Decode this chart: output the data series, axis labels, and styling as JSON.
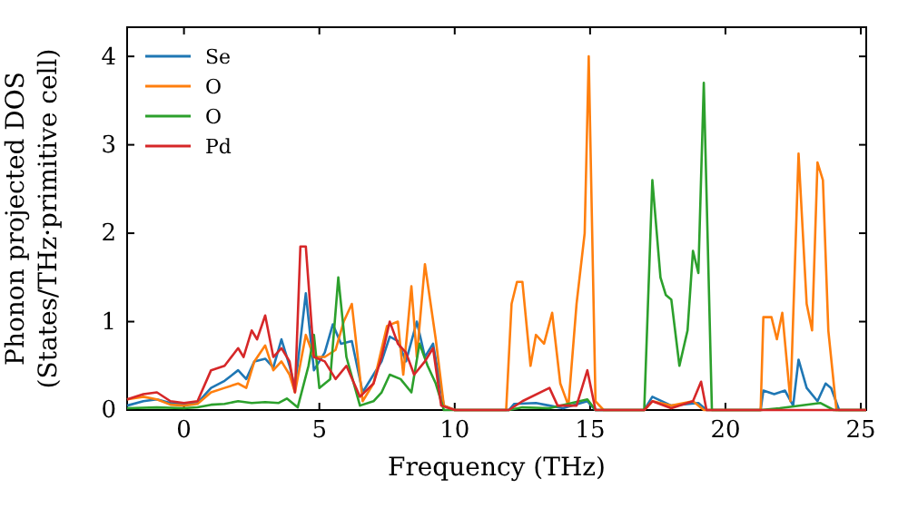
{
  "chart_data": {
    "type": "line",
    "xlabel": "Frequency (THz)",
    "ylabel": "Phonon projected DOS\n(States/THz·primitive cell)",
    "xlim": [
      -2.1,
      25.2
    ],
    "ylim": [
      0,
      4.33
    ],
    "xticks": [
      0,
      5,
      10,
      15,
      20,
      25
    ],
    "yticks": [
      0,
      1,
      2,
      3,
      4
    ],
    "legend": "top left",
    "grid": false,
    "series": [
      {
        "name": "Se",
        "color": "#1f77b4",
        "x": [
          -2.1,
          -1.5,
          -1,
          -0.5,
          0,
          0.5,
          1,
          1.5,
          2,
          2.3,
          2.6,
          3,
          3.3,
          3.6,
          3.9,
          4.1,
          4.5,
          4.8,
          5.2,
          5.5,
          5.8,
          6.2,
          6.6,
          7,
          7.3,
          7.6,
          7.9,
          8.2,
          8.6,
          8.9,
          9.2,
          9.6,
          10,
          12,
          12.2,
          13,
          13.5,
          14,
          14.9,
          15.2,
          17,
          17.3,
          18,
          19,
          19.3,
          21.3,
          21.4,
          21.8,
          22.2,
          22.5,
          22.7,
          23,
          23.4,
          23.7,
          23.9,
          24.2,
          25.2
        ],
        "values": [
          0.05,
          0.1,
          0.12,
          0.08,
          0.06,
          0.08,
          0.25,
          0.33,
          0.45,
          0.35,
          0.55,
          0.58,
          0.48,
          0.8,
          0.5,
          0.25,
          1.32,
          0.45,
          0.65,
          0.97,
          0.75,
          0.78,
          0.2,
          0.4,
          0.55,
          0.83,
          0.78,
          0.55,
          1.0,
          0.6,
          0.75,
          0.05,
          0,
          0,
          0.07,
          0.08,
          0.05,
          0.02,
          0.1,
          0,
          0,
          0.15,
          0.05,
          0.08,
          0,
          0,
          0.22,
          0.18,
          0.22,
          0.05,
          0.57,
          0.25,
          0.1,
          0.3,
          0.25,
          0,
          0
        ]
      },
      {
        "name": "O",
        "color": "#ff7f0e",
        "x": [
          -2.1,
          -1.5,
          -1,
          -0.5,
          0,
          0.5,
          1,
          1.5,
          2,
          2.3,
          2.6,
          3,
          3.3,
          3.6,
          3.9,
          4.1,
          4.5,
          4.8,
          5.2,
          5.6,
          5.9,
          6.2,
          6.6,
          7,
          7.5,
          7.9,
          8.1,
          8.4,
          8.6,
          8.9,
          9.3,
          9.6,
          10,
          11.9,
          12.1,
          12.3,
          12.5,
          12.8,
          13,
          13.3,
          13.6,
          13.9,
          14.2,
          14.5,
          14.8,
          14.95,
          15.2,
          15.5,
          17,
          17.3,
          18,
          18.8,
          19.2,
          21.3,
          21.4,
          21.7,
          21.9,
          22.1,
          22.4,
          22.7,
          23,
          23.2,
          23.4,
          23.6,
          23.8,
          24.1,
          25.2
        ],
        "values": [
          0.12,
          0.15,
          0.12,
          0.06,
          0.05,
          0.07,
          0.2,
          0.25,
          0.3,
          0.25,
          0.55,
          0.73,
          0.45,
          0.55,
          0.4,
          0.2,
          0.85,
          0.6,
          0.6,
          0.68,
          1.0,
          1.2,
          0.1,
          0.3,
          0.95,
          1.0,
          0.4,
          1.4,
          0.6,
          1.65,
          0.8,
          0.05,
          0,
          0,
          1.2,
          1.45,
          1.45,
          0.5,
          0.85,
          0.75,
          1.1,
          0.3,
          0.05,
          1.2,
          2.0,
          4.0,
          0.1,
          0,
          0,
          0.1,
          0.05,
          0.1,
          0,
          0,
          1.05,
          1.05,
          0.8,
          1.1,
          0.1,
          2.9,
          1.2,
          0.9,
          2.8,
          2.6,
          0.9,
          0,
          0
        ]
      },
      {
        "name": "O",
        "color": "#2ca02c",
        "x": [
          -2.1,
          -1,
          0,
          0.5,
          1,
          1.5,
          2,
          2.5,
          3,
          3.5,
          3.8,
          4.2,
          4.6,
          4.8,
          5,
          5.4,
          5.7,
          6,
          6.5,
          7,
          7.3,
          7.6,
          8,
          8.4,
          8.7,
          9,
          9.3,
          9.6,
          12,
          12.5,
          13.5,
          14.9,
          15.2,
          17,
          17.3,
          17.6,
          17.8,
          18,
          18.3,
          18.6,
          18.8,
          19,
          19.2,
          19.5,
          21.3,
          22,
          23.5,
          24,
          25.2
        ],
        "values": [
          0.02,
          0.03,
          0.02,
          0.03,
          0.06,
          0.07,
          0.1,
          0.08,
          0.09,
          0.08,
          0.13,
          0.03,
          0.5,
          0.85,
          0.25,
          0.35,
          1.5,
          0.6,
          0.05,
          0.1,
          0.2,
          0.4,
          0.35,
          0.2,
          0.75,
          0.5,
          0.3,
          0,
          0,
          0.03,
          0.02,
          0.12,
          0,
          0,
          2.6,
          1.5,
          1.3,
          1.25,
          0.5,
          0.9,
          1.8,
          1.55,
          3.7,
          0,
          0,
          0.02,
          0.08,
          0,
          0
        ]
      },
      {
        "name": "Pd",
        "color": "#d62728",
        "x": [
          -2.1,
          -1.5,
          -1,
          -0.5,
          0,
          0.5,
          1,
          1.5,
          2,
          2.2,
          2.5,
          2.7,
          3,
          3.3,
          3.6,
          3.9,
          4.1,
          4.3,
          4.5,
          4.8,
          5.2,
          5.6,
          6,
          6.5,
          7,
          7.3,
          7.6,
          7.9,
          8.2,
          8.5,
          8.9,
          9.2,
          9.5,
          10,
          12,
          12.5,
          13.5,
          13.8,
          14.5,
          14.9,
          15.2,
          17,
          17.3,
          18,
          18.8,
          19.1,
          19.3,
          21,
          25.2
        ],
        "values": [
          0.12,
          0.18,
          0.2,
          0.1,
          0.08,
          0.1,
          0.45,
          0.5,
          0.7,
          0.6,
          0.9,
          0.8,
          1.07,
          0.6,
          0.7,
          0.55,
          0.2,
          1.85,
          1.85,
          0.6,
          0.55,
          0.35,
          0.5,
          0.15,
          0.3,
          0.6,
          1.0,
          0.75,
          0.65,
          0.4,
          0.55,
          0.7,
          0.05,
          0,
          0,
          0.1,
          0.25,
          0.05,
          0.05,
          0.45,
          0,
          0,
          0.1,
          0.02,
          0.1,
          0.32,
          0,
          0,
          0
        ]
      }
    ]
  }
}
